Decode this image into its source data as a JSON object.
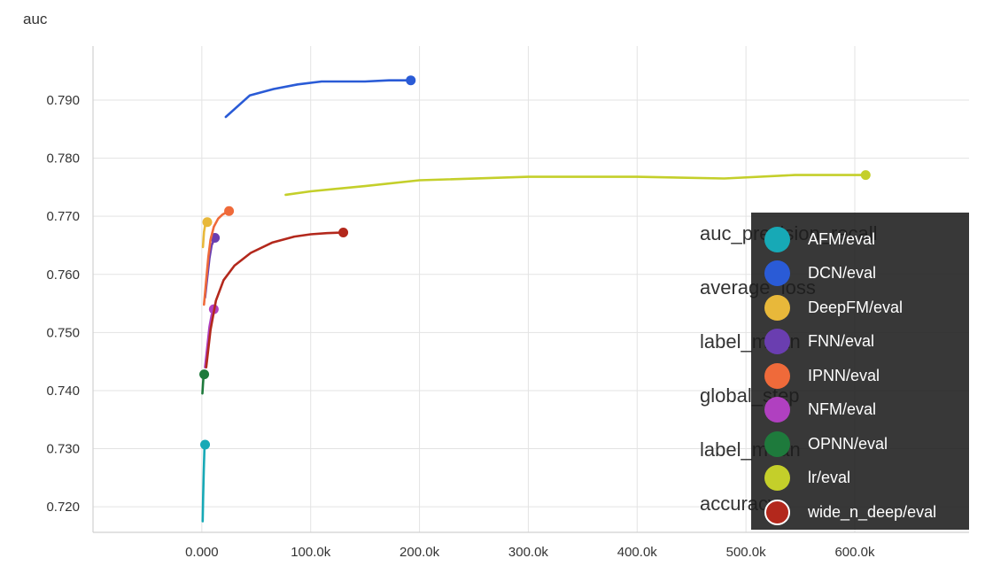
{
  "chart_data": {
    "type": "line",
    "title": "auc",
    "xlabel": "",
    "ylabel": "",
    "xlim": [
      -100000,
      705000
    ],
    "ylim": [
      0.7156,
      0.7993
    ],
    "grid": true,
    "x_ticks": [
      {
        "value": 0,
        "label": "0.000"
      },
      {
        "value": 100000,
        "label": "100.0k"
      },
      {
        "value": 200000,
        "label": "200.0k"
      },
      {
        "value": 300000,
        "label": "300.0k"
      },
      {
        "value": 400000,
        "label": "400.0k"
      },
      {
        "value": 500000,
        "label": "500.0k"
      },
      {
        "value": 600000,
        "label": "600.0k"
      }
    ],
    "y_ticks": [
      {
        "value": 0.72,
        "label": "0.720"
      },
      {
        "value": 0.73,
        "label": "0.730"
      },
      {
        "value": 0.74,
        "label": "0.740"
      },
      {
        "value": 0.75,
        "label": "0.750"
      },
      {
        "value": 0.76,
        "label": "0.760"
      },
      {
        "value": 0.77,
        "label": "0.770"
      },
      {
        "value": 0.78,
        "label": "0.780"
      },
      {
        "value": 0.79,
        "label": "0.790"
      }
    ],
    "legend_position": "bottom-right",
    "series": [
      {
        "name": "AFM/eval",
        "color": "#17a9b6",
        "end_marker": true,
        "points": [
          [
            800,
            0.7175
          ],
          [
            1200,
            0.7215
          ],
          [
            1800,
            0.7265
          ],
          [
            2400,
            0.73
          ],
          [
            3000,
            0.7307
          ]
        ]
      },
      {
        "name": "DCN/eval",
        "color": "#2a5bd6",
        "end_marker": true,
        "points": [
          [
            22000,
            0.7871
          ],
          [
            44000,
            0.7908
          ],
          [
            66000,
            0.7919
          ],
          [
            88000,
            0.7927
          ],
          [
            110000,
            0.7932
          ],
          [
            150000,
            0.7932
          ],
          [
            172000,
            0.7934
          ],
          [
            192000,
            0.7934
          ]
        ]
      },
      {
        "name": "DeepFM/eval",
        "color": "#e8b83a",
        "end_marker": true,
        "points": [
          [
            1000,
            0.7647
          ],
          [
            2000,
            0.7673
          ],
          [
            3000,
            0.7684
          ],
          [
            5000,
            0.769
          ]
        ]
      },
      {
        "name": "FNN/eval",
        "color": "#6a3eb0",
        "end_marker": true,
        "points": [
          [
            3000,
            0.756
          ],
          [
            5000,
            0.7595
          ],
          [
            7000,
            0.7628
          ],
          [
            9000,
            0.765
          ],
          [
            12000,
            0.7663
          ]
        ]
      },
      {
        "name": "IPNN/eval",
        "color": "#ef6a3a",
        "end_marker": true,
        "points": [
          [
            2000,
            0.7548
          ],
          [
            4000,
            0.759
          ],
          [
            6000,
            0.763
          ],
          [
            8000,
            0.766
          ],
          [
            11000,
            0.7682
          ],
          [
            15000,
            0.7696
          ],
          [
            19000,
            0.7703
          ],
          [
            25000,
            0.7709
          ]
        ]
      },
      {
        "name": "NFM/eval",
        "color": "#b040c0",
        "end_marker": true,
        "points": [
          [
            3000,
            0.744
          ],
          [
            5000,
            0.7475
          ],
          [
            7000,
            0.751
          ],
          [
            9000,
            0.753
          ],
          [
            11000,
            0.754
          ]
        ]
      },
      {
        "name": "OPNN/eval",
        "color": "#1e7a3c",
        "end_marker": true,
        "points": [
          [
            500,
            0.7395
          ],
          [
            1000,
            0.741
          ],
          [
            1600,
            0.7425
          ],
          [
            2200,
            0.7428
          ]
        ]
      },
      {
        "name": "lr/eval",
        "color": "#c4cf2a",
        "end_marker": true,
        "points": [
          [
            77000,
            0.7737
          ],
          [
            100000,
            0.7743
          ],
          [
            150000,
            0.7752
          ],
          [
            200000,
            0.7762
          ],
          [
            300000,
            0.7768
          ],
          [
            400000,
            0.7768
          ],
          [
            480000,
            0.7765
          ],
          [
            545000,
            0.7771
          ],
          [
            610000,
            0.7771
          ]
        ]
      },
      {
        "name": "wide_n_deep/eval",
        "color": "#b3281c",
        "end_marker": true,
        "points": [
          [
            4000,
            0.744
          ],
          [
            8000,
            0.7505
          ],
          [
            13000,
            0.7555
          ],
          [
            20000,
            0.759
          ],
          [
            30000,
            0.7615
          ],
          [
            45000,
            0.7637
          ],
          [
            65000,
            0.7655
          ],
          [
            85000,
            0.7665
          ],
          [
            100000,
            0.7669
          ],
          [
            115000,
            0.7671
          ],
          [
            130000,
            0.7672
          ]
        ]
      }
    ],
    "background_text": [
      "auc_precision_recall",
      "average_loss",
      "label_mean",
      "global_step",
      "label_mean",
      "accuracy"
    ]
  },
  "legend": {
    "entries": [
      {
        "label": "AFM/eval",
        "color": "#17a9b6"
      },
      {
        "label": "DCN/eval",
        "color": "#2a5bd6"
      },
      {
        "label": "DeepFM/eval",
        "color": "#e8b83a"
      },
      {
        "label": "FNN/eval",
        "color": "#6a3eb0"
      },
      {
        "label": "IPNN/eval",
        "color": "#ef6a3a"
      },
      {
        "label": "NFM/eval",
        "color": "#b040c0"
      },
      {
        "label": "OPNN/eval",
        "color": "#1e7a3c"
      },
      {
        "label": "lr/eval",
        "color": "#c4cf2a"
      },
      {
        "label": "wide_n_deep/eval",
        "color": "#b3281c",
        "outlined": true
      }
    ]
  }
}
